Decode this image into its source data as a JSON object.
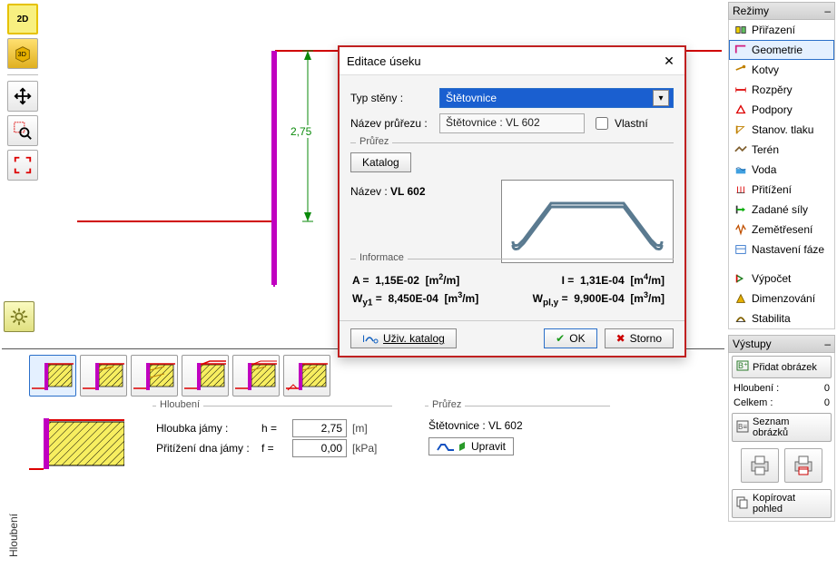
{
  "colors": {
    "accent": "#2a6fc9",
    "dialog_border": "#c02020",
    "green": "#0a8a0a",
    "hatch": "#e6d800",
    "magenta": "#c000c0",
    "red": "#d00000"
  },
  "canvas": {
    "dim_label": "2,75"
  },
  "right": {
    "modes_title": "Režimy",
    "modes": [
      {
        "label": "Přiřazení",
        "icon": "assign"
      },
      {
        "label": "Geometrie",
        "icon": "geom",
        "selected": true
      },
      {
        "label": "Kotvy",
        "icon": "anchor"
      },
      {
        "label": "Rozpěry",
        "icon": "strut"
      },
      {
        "label": "Podpory",
        "icon": "support"
      },
      {
        "label": "Stanov. tlaku",
        "icon": "pressure"
      },
      {
        "label": "Terén",
        "icon": "terrain"
      },
      {
        "label": "Voda",
        "icon": "water"
      },
      {
        "label": "Přitížení",
        "icon": "surcharge"
      },
      {
        "label": "Zadané síly",
        "icon": "forces"
      },
      {
        "label": "Zemětřesení",
        "icon": "quake"
      },
      {
        "label": "Nastavení fáze",
        "icon": "stage"
      }
    ],
    "modes2": [
      {
        "label": "Výpočet",
        "icon": "calc"
      },
      {
        "label": "Dimenzování",
        "icon": "dim"
      },
      {
        "label": "Stabilita",
        "icon": "stab"
      }
    ],
    "outputs_title": "Výstupy",
    "add_image": "Přidat obrázek",
    "rows": [
      {
        "k": "Hloubení :",
        "v": "0"
      },
      {
        "k": "Celkem :",
        "v": "0"
      }
    ],
    "list_images": "Seznam obrázků",
    "copy_view": "Kopírovat pohled"
  },
  "bottom": {
    "tab": "Hloubení",
    "group1": "Hloubení",
    "group2": "Průřez",
    "row1_label": "Hloubka jámy :",
    "row1_sym": "h =",
    "row1_val": "2,75",
    "row1_unit": "[m]",
    "row2_label": "Přitížení dna jámy :",
    "row2_sym": "f =",
    "row2_val": "0,00",
    "row2_unit": "[kPa]",
    "section_name": "Štětovnice : VL 602",
    "edit_btn": "Upravit"
  },
  "dialog": {
    "title": "Editace úseku",
    "row1_label": "Typ stěny :",
    "combo_value": "Štětovnice",
    "row2_label": "Název průřezu :",
    "name_value": "Štětovnice : VL 602",
    "own": "Vlastní",
    "section_group": "Průřez",
    "katalog": "Katalog",
    "name_lbl": "Název :",
    "name_bold": "VL 602",
    "info_group": "Informace",
    "info": {
      "A_lhs": "A =",
      "A_val": "1,15E-02",
      "A_unit": "[m²/m]",
      "I_lhs": "I =",
      "I_val": "1,31E-04",
      "I_unit": "[m⁴/m]",
      "Wy_lhs": "W",
      "Wy_sub": "y1",
      "Wy_eq": " =",
      "Wy_val": "8,450E-04",
      "Wy_unit": "[m³/m]",
      "Wpl_lhs": "W",
      "Wpl_sub": "pl,y",
      "Wpl_eq": " =",
      "Wpl_val": "9,900E-04",
      "Wpl_unit": "[m³/m]"
    },
    "user_catalog": "Uživ. katalog",
    "ok": "OK",
    "cancel": "Storno"
  }
}
